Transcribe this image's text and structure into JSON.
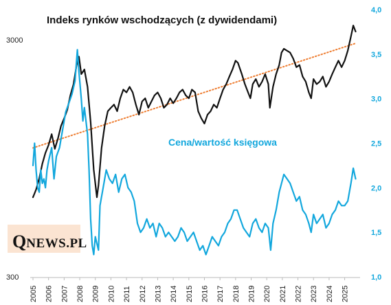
{
  "chart_data": {
    "type": "line",
    "title": "Indeks rynków wschodzących (z dywidendami)",
    "annotation": "Cena/wartość księgowa",
    "x_ticks": [
      "2005",
      "2006",
      "2007",
      "2008",
      "2009",
      "2010",
      "2011",
      "2012",
      "2013",
      "2014",
      "2015",
      "2016",
      "2017",
      "2018",
      "2019",
      "2020",
      "2021",
      "2022",
      "2023",
      "2024",
      "2025"
    ],
    "xlim": [
      2005.0,
      2025.9
    ],
    "y_left": {
      "scale": "log",
      "ticks": [
        300,
        3000
      ],
      "range": [
        300,
        3000
      ]
    },
    "y_right": {
      "scale": "linear",
      "ticks": [
        "1,0",
        "1,5",
        "2,0",
        "2,5",
        "3,0",
        "3,5",
        "4,0"
      ],
      "range": [
        1.0,
        4.0
      ]
    },
    "series": [
      {
        "axis": "left",
        "color": "#111111",
        "points": [
          [
            2005.0,
            650
          ],
          [
            2005.2,
            700
          ],
          [
            2005.4,
            780
          ],
          [
            2005.6,
            900
          ],
          [
            2005.8,
            1000
          ],
          [
            2006.0,
            1080
          ],
          [
            2006.2,
            1200
          ],
          [
            2006.4,
            1040
          ],
          [
            2006.6,
            1150
          ],
          [
            2006.8,
            1300
          ],
          [
            2007.0,
            1400
          ],
          [
            2007.2,
            1520
          ],
          [
            2007.4,
            1750
          ],
          [
            2007.6,
            1950
          ],
          [
            2007.8,
            2350
          ],
          [
            2007.95,
            2550
          ],
          [
            2008.1,
            2150
          ],
          [
            2008.3,
            2250
          ],
          [
            2008.5,
            1900
          ],
          [
            2008.7,
            1350
          ],
          [
            2008.9,
            850
          ],
          [
            2009.1,
            650
          ],
          [
            2009.2,
            730
          ],
          [
            2009.4,
            1050
          ],
          [
            2009.6,
            1300
          ],
          [
            2009.8,
            1500
          ],
          [
            2010.0,
            1550
          ],
          [
            2010.2,
            1600
          ],
          [
            2010.4,
            1500
          ],
          [
            2010.6,
            1700
          ],
          [
            2010.8,
            1850
          ],
          [
            2011.0,
            1800
          ],
          [
            2011.2,
            1900
          ],
          [
            2011.4,
            1800
          ],
          [
            2011.6,
            1600
          ],
          [
            2011.8,
            1450
          ],
          [
            2012.0,
            1650
          ],
          [
            2012.2,
            1700
          ],
          [
            2012.4,
            1550
          ],
          [
            2012.6,
            1650
          ],
          [
            2012.8,
            1750
          ],
          [
            2013.0,
            1800
          ],
          [
            2013.2,
            1700
          ],
          [
            2013.4,
            1550
          ],
          [
            2013.6,
            1600
          ],
          [
            2013.8,
            1700
          ],
          [
            2014.0,
            1620
          ],
          [
            2014.2,
            1700
          ],
          [
            2014.4,
            1800
          ],
          [
            2014.6,
            1850
          ],
          [
            2014.8,
            1750
          ],
          [
            2015.0,
            1700
          ],
          [
            2015.2,
            1850
          ],
          [
            2015.4,
            1800
          ],
          [
            2015.6,
            1500
          ],
          [
            2015.8,
            1400
          ],
          [
            2016.0,
            1330
          ],
          [
            2016.2,
            1450
          ],
          [
            2016.4,
            1500
          ],
          [
            2016.6,
            1600
          ],
          [
            2016.8,
            1550
          ],
          [
            2017.0,
            1700
          ],
          [
            2017.2,
            1850
          ],
          [
            2017.4,
            1950
          ],
          [
            2017.6,
            2100
          ],
          [
            2017.8,
            2250
          ],
          [
            2018.0,
            2450
          ],
          [
            2018.15,
            2400
          ],
          [
            2018.4,
            2150
          ],
          [
            2018.6,
            1950
          ],
          [
            2018.8,
            1800
          ],
          [
            2018.95,
            1700
          ],
          [
            2019.1,
            1950
          ],
          [
            2019.3,
            2050
          ],
          [
            2019.5,
            1900
          ],
          [
            2019.7,
            2000
          ],
          [
            2019.9,
            2150
          ],
          [
            2020.1,
            1950
          ],
          [
            2020.2,
            1550
          ],
          [
            2020.4,
            1900
          ],
          [
            2020.6,
            2150
          ],
          [
            2020.8,
            2350
          ],
          [
            2020.95,
            2650
          ],
          [
            2021.1,
            2750
          ],
          [
            2021.3,
            2700
          ],
          [
            2021.5,
            2650
          ],
          [
            2021.7,
            2500
          ],
          [
            2021.9,
            2300
          ],
          [
            2022.1,
            2350
          ],
          [
            2022.3,
            2100
          ],
          [
            2022.5,
            2000
          ],
          [
            2022.7,
            1800
          ],
          [
            2022.85,
            1700
          ],
          [
            2023.0,
            2050
          ],
          [
            2023.2,
            1950
          ],
          [
            2023.4,
            2000
          ],
          [
            2023.6,
            2100
          ],
          [
            2023.8,
            1900
          ],
          [
            2024.0,
            2000
          ],
          [
            2024.2,
            2150
          ],
          [
            2024.4,
            2300
          ],
          [
            2024.6,
            2450
          ],
          [
            2024.8,
            2300
          ],
          [
            2025.0,
            2450
          ],
          [
            2025.2,
            2700
          ],
          [
            2025.4,
            3100
          ],
          [
            2025.55,
            3450
          ],
          [
            2025.7,
            3250
          ]
        ]
      },
      {
        "axis": "left",
        "style": "dotted-trend",
        "color": "#ee7d31",
        "points": [
          [
            2005.0,
            1050
          ],
          [
            2025.7,
            2900
          ]
        ]
      },
      {
        "axis": "right",
        "color": "#12a7dd",
        "points": [
          [
            2005.0,
            2.25
          ],
          [
            2005.1,
            2.5
          ],
          [
            2005.2,
            2.2
          ],
          [
            2005.3,
            2.0
          ],
          [
            2005.4,
            1.95
          ],
          [
            2005.5,
            2.2
          ],
          [
            2005.6,
            2.05
          ],
          [
            2005.7,
            2.1
          ],
          [
            2005.8,
            2.0
          ],
          [
            2005.9,
            2.2
          ],
          [
            2006.0,
            2.3
          ],
          [
            2006.2,
            2.45
          ],
          [
            2006.35,
            2.1
          ],
          [
            2006.5,
            2.35
          ],
          [
            2006.7,
            2.45
          ],
          [
            2006.9,
            2.65
          ],
          [
            2007.1,
            2.85
          ],
          [
            2007.3,
            2.95
          ],
          [
            2007.5,
            3.05
          ],
          [
            2007.7,
            3.2
          ],
          [
            2007.85,
            3.55
          ],
          [
            2007.95,
            3.3
          ],
          [
            2008.1,
            3.0
          ],
          [
            2008.2,
            2.75
          ],
          [
            2008.3,
            2.9
          ],
          [
            2008.5,
            2.6
          ],
          [
            2008.6,
            2.2
          ],
          [
            2008.7,
            1.65
          ],
          [
            2008.8,
            1.35
          ],
          [
            2008.9,
            1.25
          ],
          [
            2009.0,
            1.45
          ],
          [
            2009.2,
            1.3
          ],
          [
            2009.3,
            1.8
          ],
          [
            2009.5,
            2.0
          ],
          [
            2009.7,
            2.2
          ],
          [
            2009.9,
            2.1
          ],
          [
            2010.1,
            2.05
          ],
          [
            2010.3,
            2.15
          ],
          [
            2010.5,
            1.95
          ],
          [
            2010.7,
            2.1
          ],
          [
            2010.9,
            2.15
          ],
          [
            2011.1,
            2.0
          ],
          [
            2011.3,
            1.95
          ],
          [
            2011.5,
            1.85
          ],
          [
            2011.7,
            1.6
          ],
          [
            2011.9,
            1.5
          ],
          [
            2012.1,
            1.55
          ],
          [
            2012.3,
            1.65
          ],
          [
            2012.5,
            1.55
          ],
          [
            2012.7,
            1.6
          ],
          [
            2012.9,
            1.45
          ],
          [
            2013.1,
            1.6
          ],
          [
            2013.3,
            1.55
          ],
          [
            2013.5,
            1.45
          ],
          [
            2013.7,
            1.5
          ],
          [
            2013.9,
            1.45
          ],
          [
            2014.1,
            1.4
          ],
          [
            2014.3,
            1.45
          ],
          [
            2014.5,
            1.55
          ],
          [
            2014.7,
            1.5
          ],
          [
            2014.9,
            1.4
          ],
          [
            2015.1,
            1.45
          ],
          [
            2015.3,
            1.5
          ],
          [
            2015.5,
            1.4
          ],
          [
            2015.7,
            1.3
          ],
          [
            2015.9,
            1.35
          ],
          [
            2016.1,
            1.25
          ],
          [
            2016.3,
            1.35
          ],
          [
            2016.5,
            1.45
          ],
          [
            2016.7,
            1.4
          ],
          [
            2016.9,
            1.35
          ],
          [
            2017.1,
            1.45
          ],
          [
            2017.3,
            1.5
          ],
          [
            2017.5,
            1.6
          ],
          [
            2017.7,
            1.65
          ],
          [
            2017.9,
            1.75
          ],
          [
            2018.1,
            1.75
          ],
          [
            2018.3,
            1.65
          ],
          [
            2018.5,
            1.55
          ],
          [
            2018.7,
            1.5
          ],
          [
            2018.9,
            1.45
          ],
          [
            2019.1,
            1.6
          ],
          [
            2019.3,
            1.65
          ],
          [
            2019.5,
            1.55
          ],
          [
            2019.7,
            1.5
          ],
          [
            2019.9,
            1.6
          ],
          [
            2020.1,
            1.55
          ],
          [
            2020.25,
            1.3
          ],
          [
            2020.4,
            1.6
          ],
          [
            2020.6,
            1.75
          ],
          [
            2020.8,
            1.95
          ],
          [
            2020.95,
            2.05
          ],
          [
            2021.1,
            2.15
          ],
          [
            2021.3,
            2.1
          ],
          [
            2021.5,
            2.05
          ],
          [
            2021.7,
            1.95
          ],
          [
            2021.9,
            1.85
          ],
          [
            2022.1,
            1.9
          ],
          [
            2022.3,
            1.75
          ],
          [
            2022.5,
            1.7
          ],
          [
            2022.7,
            1.6
          ],
          [
            2022.85,
            1.5
          ],
          [
            2023.0,
            1.7
          ],
          [
            2023.2,
            1.6
          ],
          [
            2023.4,
            1.65
          ],
          [
            2023.6,
            1.7
          ],
          [
            2023.8,
            1.55
          ],
          [
            2024.0,
            1.6
          ],
          [
            2024.2,
            1.7
          ],
          [
            2024.4,
            1.75
          ],
          [
            2024.6,
            1.85
          ],
          [
            2024.8,
            1.8
          ],
          [
            2025.0,
            1.8
          ],
          [
            2025.2,
            1.85
          ],
          [
            2025.4,
            2.05
          ],
          [
            2025.55,
            2.22
          ],
          [
            2025.7,
            2.1
          ]
        ]
      }
    ]
  },
  "branding": {
    "logo_q": "Q",
    "logo_rest": "NEWS.PL"
  },
  "colors": {
    "index": "#111111",
    "pb": "#12a7dd",
    "trend": "#ee7d31",
    "logo_bg": "#fbe4d2"
  }
}
